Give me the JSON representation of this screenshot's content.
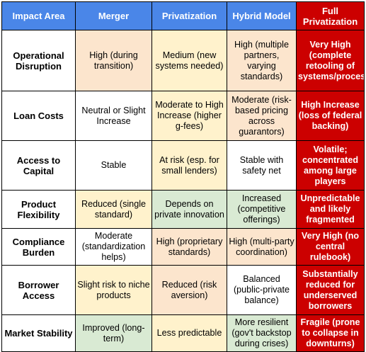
{
  "table": {
    "headers": [
      "Impact Area",
      "Merger",
      "Privatization",
      "Hybrid Model",
      "Full Privatization"
    ],
    "rows": [
      {
        "area": "Operational Disruption",
        "cells": [
          {
            "text": "High (during transition)",
            "tone": "orange"
          },
          {
            "text": "Medium (new systems needed)",
            "tone": "yellow"
          },
          {
            "text": "High (multiple partners, varying standards)",
            "tone": "orange"
          },
          {
            "text": "Very High (complete retooling of systems/processes)",
            "tone": "red"
          }
        ]
      },
      {
        "area": "Loan Costs",
        "cells": [
          {
            "text": "Neutral or Slight Increase",
            "tone": "white"
          },
          {
            "text": "Moderate to High Increase (higher g-fees)",
            "tone": "yellow"
          },
          {
            "text": "Moderate (risk-based pricing across guarantors)",
            "tone": "orange"
          },
          {
            "text": "High Increase (loss of federal backing)",
            "tone": "red"
          }
        ]
      },
      {
        "area": "Access to Capital",
        "cells": [
          {
            "text": "Stable",
            "tone": "white"
          },
          {
            "text": "At risk (esp. for small lenders)",
            "tone": "yellow"
          },
          {
            "text": "Stable with safety net",
            "tone": "white"
          },
          {
            "text": "Volatile; concentrated among large players",
            "tone": "red"
          }
        ]
      },
      {
        "area": "Product Flexibility",
        "cells": [
          {
            "text": "Reduced (single standard)",
            "tone": "yellow"
          },
          {
            "text": "Depends on private innovation",
            "tone": "green"
          },
          {
            "text": "Increased (competitive offerings)",
            "tone": "green"
          },
          {
            "text": "Unpredictable and likely fragmented",
            "tone": "red"
          }
        ]
      },
      {
        "area": "Compliance Burden",
        "cells": [
          {
            "text": "Moderate (standardization helps)",
            "tone": "white"
          },
          {
            "text": "High (proprietary standards)",
            "tone": "orange"
          },
          {
            "text": "High (multi-party coordination)",
            "tone": "orange"
          },
          {
            "text": "Very High (no central rulebook)",
            "tone": "red"
          }
        ]
      },
      {
        "area": "Borrower Access",
        "cells": [
          {
            "text": "Slight risk to niche products",
            "tone": "yellow"
          },
          {
            "text": "Reduced (risk aversion)",
            "tone": "orange"
          },
          {
            "text": "Balanced (public-private balance)",
            "tone": "white"
          },
          {
            "text": "Substantially reduced for underserved borrowers",
            "tone": "red"
          }
        ]
      },
      {
        "area": "Market Stability",
        "cells": [
          {
            "text": "Improved (long-term)",
            "tone": "green"
          },
          {
            "text": "Less predictable",
            "tone": "yellow"
          },
          {
            "text": "More resilient (gov't backstop during crises)",
            "tone": "green"
          },
          {
            "text": "Fragile (prone to collapse in downturns)",
            "tone": "red"
          }
        ]
      }
    ]
  },
  "colors": {
    "header_blue": "#4a86e8",
    "header_red": "#cc0000",
    "orange": "#fce5cd",
    "yellow": "#fff2cc",
    "green": "#d9ead3",
    "white": "#ffffff",
    "red": "#cc0000"
  }
}
